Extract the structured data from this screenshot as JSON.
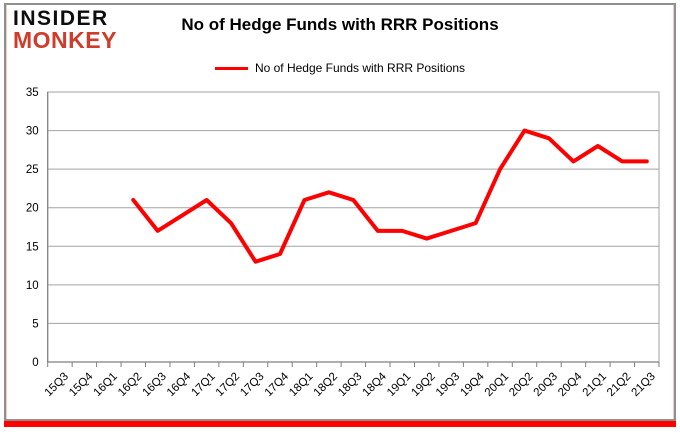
{
  "logo": {
    "line1": "INSIDER",
    "line2": "MONKEY"
  },
  "header": {
    "title": "No of Hedge Funds with RRR Positions"
  },
  "legend": {
    "label": "No of Hedge Funds with RRR Positions",
    "swatch_color": "#FE0000"
  },
  "chart_data": {
    "type": "line",
    "title": "No of Hedge Funds with RRR Positions",
    "categories": [
      "15Q3",
      "15Q4",
      "16Q1",
      "16Q2",
      "16Q3",
      "16Q4",
      "17Q1",
      "17Q2",
      "17Q3",
      "17Q4",
      "18Q1",
      "18Q2",
      "18Q3",
      "18Q4",
      "19Q1",
      "19Q2",
      "19Q3",
      "19Q4",
      "20Q1",
      "20Q2",
      "20Q3",
      "20Q4",
      "21Q1",
      "21Q2",
      "21Q3"
    ],
    "series": [
      {
        "name": "No of Hedge Funds with RRR Positions",
        "color": "#FE0000",
        "values": [
          null,
          null,
          null,
          21,
          17,
          19,
          21,
          18,
          13,
          14,
          21,
          22,
          21,
          17,
          17,
          16,
          17,
          18,
          25,
          30,
          29,
          26,
          28,
          26,
          26
        ]
      }
    ],
    "ylim": [
      0,
      35
    ],
    "yticks": [
      0,
      5,
      10,
      15,
      20,
      25,
      30,
      35
    ],
    "xlabel": "",
    "ylabel": "",
    "grid": true,
    "legend_position": "top",
    "x_label_rotation_deg": -45
  },
  "colors": {
    "accent_red": "#FE0000",
    "logo_red": "#D13B2A",
    "grid": "#A3A3A3",
    "axis": "#7F7F7F",
    "frame": "#8F8F8F",
    "text": "#000000"
  }
}
